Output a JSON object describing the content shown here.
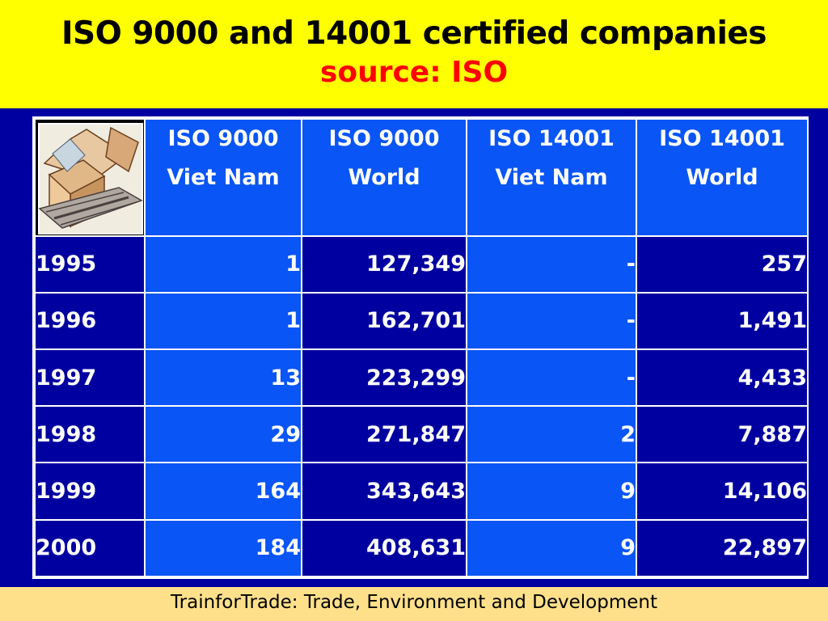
{
  "header": {
    "title": "ISO 9000 and 14001 certified companies",
    "subtitle": "source: ISO"
  },
  "table": {
    "icon": "box-conveyor-icon",
    "columns": [
      {
        "line1": "ISO 9000",
        "line2": "Viet Nam"
      },
      {
        "line1": "ISO 9000",
        "line2": "World"
      },
      {
        "line1": "ISO 14001",
        "line2": "Viet Nam"
      },
      {
        "line1": "ISO 14001",
        "line2": "World"
      }
    ],
    "rows": [
      {
        "year": "1995",
        "c0": "1",
        "c1": "127,349",
        "c2": "-",
        "c3": "257"
      },
      {
        "year": "1996",
        "c0": "1",
        "c1": "162,701",
        "c2": "-",
        "c3": "1,491"
      },
      {
        "year": "1997",
        "c0": "13",
        "c1": "223,299",
        "c2": "-",
        "c3": "4,433"
      },
      {
        "year": "1998",
        "c0": "29",
        "c1": "271,847",
        "c2": "2",
        "c3": "7,887"
      },
      {
        "year": "1999",
        "c0": "164",
        "c1": "343,643",
        "c2": "9",
        "c3": "14,106"
      },
      {
        "year": "2000",
        "c0": "184",
        "c1": "408,631",
        "c2": "9",
        "c3": "22,897"
      }
    ]
  },
  "footer": {
    "text": "TrainforTrade: Trade, Environment and Development"
  },
  "colors": {
    "title_band": "#ffff00",
    "title_text": "#000000",
    "subtitle_text": "#ff0000",
    "background": "#0000a0",
    "header_cell": "#0a55f5",
    "footer_band": "#ffe08a"
  }
}
